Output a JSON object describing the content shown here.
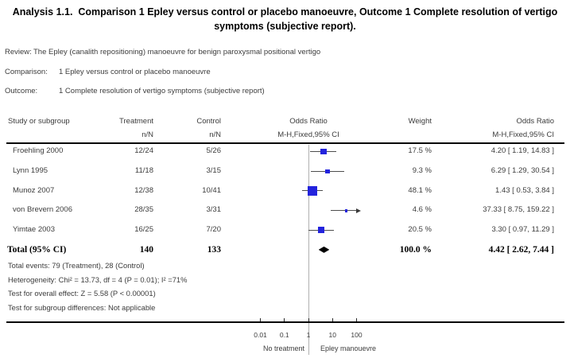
{
  "title": "Analysis 1.1.  Comparison 1 Epley versus control or placebo manoeuvre, Outcome 1 Complete resolution of vertigo symptoms (subjective report).",
  "meta": {
    "review_label": "Review:",
    "review": "The Epley (canalith repositioning) manoeuvre for benign paroxysmal positional vertigo",
    "comparison_label": "Comparison:",
    "comparison": "1 Epley versus control or placebo manoeuvre",
    "outcome_label": "Outcome:",
    "outcome": "1 Complete resolution of vertigo symptoms (subjective report)"
  },
  "columns": {
    "study": "Study or subgroup",
    "treatment": "Treatment",
    "treatment_sub": "n/N",
    "control": "Control",
    "control_sub": "n/N",
    "plot_header": "Odds Ratio",
    "plot_subheader": "M-H,Fixed,95% CI",
    "weight": "Weight",
    "or_text": "Odds Ratio",
    "or_text_sub": "M-H,Fixed,95% CI"
  },
  "chart_data": {
    "type": "scatter",
    "description": "Forest plot, odds ratios with 95% CI on log10 x-axis",
    "log_x": true,
    "xlim": [
      0.01,
      100
    ],
    "x_ticks": [
      0.01,
      0.1,
      1,
      10,
      100
    ],
    "x_tick_labels": [
      "0.01",
      "0.1",
      "1",
      "10",
      "100"
    ],
    "left_label": "No treatment",
    "right_label": "Epley manouevre",
    "studies": [
      {
        "name": "Froehling 2000",
        "treatment": "12/24",
        "control": "5/26",
        "or": 4.2,
        "ci_low": 1.19,
        "ci_high": 14.83,
        "weight_pct": 17.5,
        "weight_label": "17.5 %",
        "or_label": "4.20 [ 1.19, 14.83 ]"
      },
      {
        "name": "Lynn 1995",
        "treatment": "11/18",
        "control": "3/15",
        "or": 6.29,
        "ci_low": 1.29,
        "ci_high": 30.54,
        "weight_pct": 9.3,
        "weight_label": "9.3 %",
        "or_label": "6.29 [ 1.29, 30.54 ]"
      },
      {
        "name": "Munoz 2007",
        "treatment": "12/38",
        "control": "10/41",
        "or": 1.43,
        "ci_low": 0.53,
        "ci_high": 3.84,
        "weight_pct": 48.1,
        "weight_label": "48.1 %",
        "or_label": "1.43 [ 0.53, 3.84 ]"
      },
      {
        "name": "von Brevern 2006",
        "treatment": "28/35",
        "control": "3/31",
        "or": 37.33,
        "ci_low": 8.75,
        "ci_high": 159.22,
        "weight_pct": 4.6,
        "weight_label": "4.6 %",
        "or_label": "37.33 [ 8.75, 159.22 ]"
      },
      {
        "name": "Yimtae 2003",
        "treatment": "16/25",
        "control": "7/20",
        "or": 3.3,
        "ci_low": 0.97,
        "ci_high": 11.29,
        "weight_pct": 20.5,
        "weight_label": "20.5 %",
        "or_label": "3.30 [ 0.97, 11.29 ]"
      }
    ],
    "total": {
      "name": "Total (95% CI)",
      "treatment": "140",
      "control": "133",
      "or": 4.42,
      "ci_low": 2.62,
      "ci_high": 7.44,
      "weight_label": "100.0 %",
      "or_label": "4.42 [ 2.62, 7.44 ]"
    }
  },
  "footnotes": [
    "Total events: 79 (Treatment), 28 (Control)",
    "Heterogeneity: Chi² = 13.73, df = 4 (P = 0.01); I² =71%",
    "Test for overall effect: Z = 5.58 (P < 0.00001)",
    "Test for subgroup differences: Not applicable"
  ],
  "colors": {
    "marker_blue": "#2323dd",
    "diamond_black": "#000000",
    "ci_line": "#4d4d4d",
    "ref_line": "#b0b0b0",
    "text": "#3c3c3c"
  }
}
